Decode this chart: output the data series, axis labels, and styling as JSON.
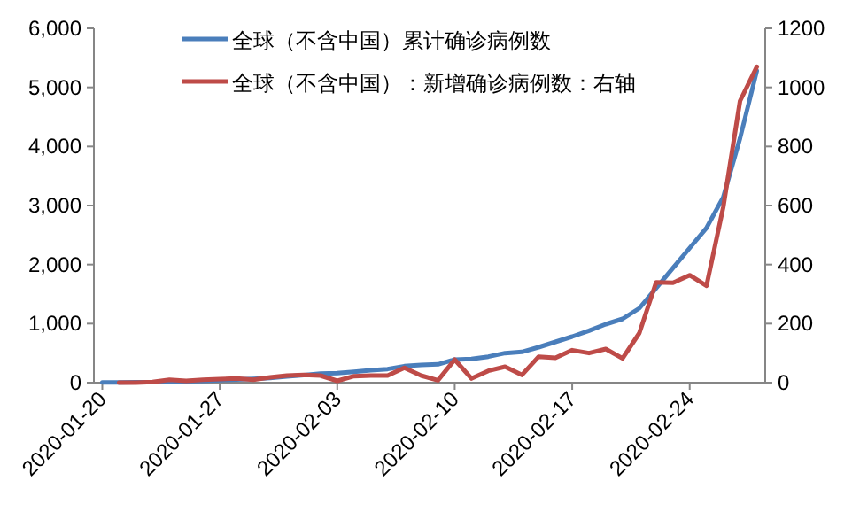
{
  "chart_data": {
    "type": "line",
    "legend": "top",
    "grid": false,
    "marker": "none",
    "line_style": "solid",
    "x": [
      "2020-01-20",
      "2020-01-21",
      "2020-01-22",
      "2020-01-23",
      "2020-01-24",
      "2020-01-25",
      "2020-01-26",
      "2020-01-27",
      "2020-01-28",
      "2020-01-29",
      "2020-01-30",
      "2020-01-31",
      "2020-02-01",
      "2020-02-02",
      "2020-02-03",
      "2020-02-04",
      "2020-02-05",
      "2020-02-06",
      "2020-02-07",
      "2020-02-08",
      "2020-02-09",
      "2020-02-10",
      "2020-02-11",
      "2020-02-12",
      "2020-02-13",
      "2020-02-14",
      "2020-02-15",
      "2020-02-16",
      "2020-02-17",
      "2020-02-18",
      "2020-02-19",
      "2020-02-20",
      "2020-02-21",
      "2020-02-22",
      "2020-02-23",
      "2020-02-24",
      "2020-02-25",
      "2020-02-26",
      "2020-02-27",
      "2020-02-28"
    ],
    "series": [
      {
        "name": "全球（不含中国）累计确诊病例数",
        "color": "#4a7ebb",
        "values": [
          4,
          4,
          6,
          8,
          16,
          22,
          30,
          42,
          54,
          64,
          80,
          104,
          128,
          152,
          160,
          184,
          210,
          230,
          280,
          300,
          310,
          390,
          400,
          440,
          500,
          520,
          600,
          690,
          780,
          880,
          990,
          1080,
          1260,
          1600,
          1940,
          2280,
          2620,
          3140,
          4140,
          5280
        ]
      },
      {
        "name": "全球（不含中国）：新增确诊病例数：右轴",
        "color": "#be4b48",
        "axis": "y2",
        "values": [
          null,
          0,
          0,
          2,
          10,
          6,
          10,
          12,
          14,
          10,
          18,
          24,
          26,
          24,
          6,
          22,
          24,
          24,
          50,
          24,
          8,
          78,
          14,
          40,
          54,
          26,
          88,
          84,
          110,
          100,
          114,
          82,
          168,
          340,
          338,
          364,
          328,
          594,
          954,
          1070
        ]
      }
    ],
    "xlim": [
      "2020-01-19T12:00",
      "2020-02-28T12:00"
    ],
    "xticks": [
      {
        "value": "2020-01-20",
        "label": "2020-01-20"
      },
      {
        "value": "2020-01-27",
        "label": "2020-01-27"
      },
      {
        "value": "2020-02-03",
        "label": "2020-02-03"
      },
      {
        "value": "2020-02-10",
        "label": "2020-02-10"
      },
      {
        "value": "2020-02-17",
        "label": "2020-02-17"
      },
      {
        "value": "2020-02-24",
        "label": "2020-02-24"
      }
    ],
    "ylim": [
      0,
      6000
    ],
    "yticks": [
      0,
      {
        "value": 1000,
        "label": "1,000"
      },
      {
        "value": 2000,
        "label": "2,000"
      },
      {
        "value": 3000,
        "label": "3,000"
      },
      {
        "value": 4000,
        "label": "4,000"
      },
      {
        "value": 5000,
        "label": "5,000"
      },
      {
        "value": 6000,
        "label": "6,000"
      }
    ],
    "y2lim": [
      0,
      1200
    ],
    "y2ticks": [
      0,
      200,
      400,
      600,
      800,
      1000,
      1200
    ]
  }
}
